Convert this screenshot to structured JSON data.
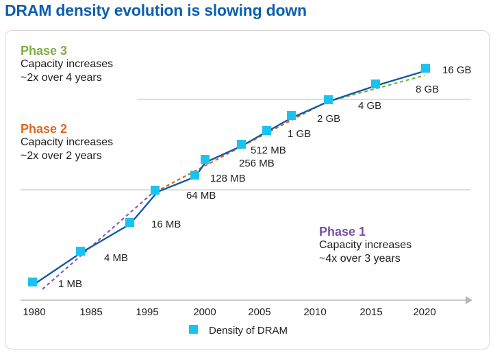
{
  "title": "DRAM density evolution is slowing down",
  "phases": [
    {
      "name": "Phase 3",
      "line1": "Capacity increases",
      "line2": "~2x over 4 years",
      "color": "#7ab03a"
    },
    {
      "name": "Phase 2",
      "line1": "Capacity increases",
      "line2": "~2x over 2 years",
      "color": "#e0661b"
    },
    {
      "name": "Phase 1",
      "line1": "Capacity increases",
      "line2": "~4x over 3 years",
      "color": "#7b4fa3"
    }
  ],
  "chart_data": {
    "type": "scatter",
    "x_ticks": [
      "1980",
      "1985",
      "1995",
      "2000",
      "2005",
      "2010",
      "2015",
      "2020"
    ],
    "ylabel": "",
    "xlabel": "",
    "legend": {
      "label": "Density of DRAM",
      "position": "bottom-center"
    },
    "grid": true,
    "series": [
      {
        "name": "Density of DRAM",
        "marker": "square",
        "color": "#1ac3ef",
        "line_color": "#0d5aa7",
        "points": [
          {
            "x": 1980,
            "label": "1 MB"
          },
          {
            "x": 1984,
            "label": "4 MB"
          },
          {
            "x": 1992,
            "label": "16 MB"
          },
          {
            "x": 1996,
            "label": ""
          },
          {
            "x": 1999,
            "label": "64 MB"
          },
          {
            "x": 2000,
            "label": "128 MB"
          },
          {
            "x": 2003,
            "label": "256 MB"
          },
          {
            "x": 2006,
            "label": "512 MB"
          },
          {
            "x": 2008,
            "label": "1 GB"
          },
          {
            "x": 2011,
            "label": "2 GB"
          },
          {
            "x": 2015,
            "label": "4 GB"
          },
          {
            "x": 2020,
            "label": "8 GB"
          },
          {
            "x": 2020,
            "label": "16 GB"
          }
        ]
      }
    ],
    "trend_lines": [
      {
        "phase": "Phase 1",
        "color": "#8e5bb5"
      },
      {
        "phase": "Phase 2",
        "color": "#e0661b"
      },
      {
        "phase": "Phase 3",
        "color": "#7ab03a"
      }
    ]
  }
}
